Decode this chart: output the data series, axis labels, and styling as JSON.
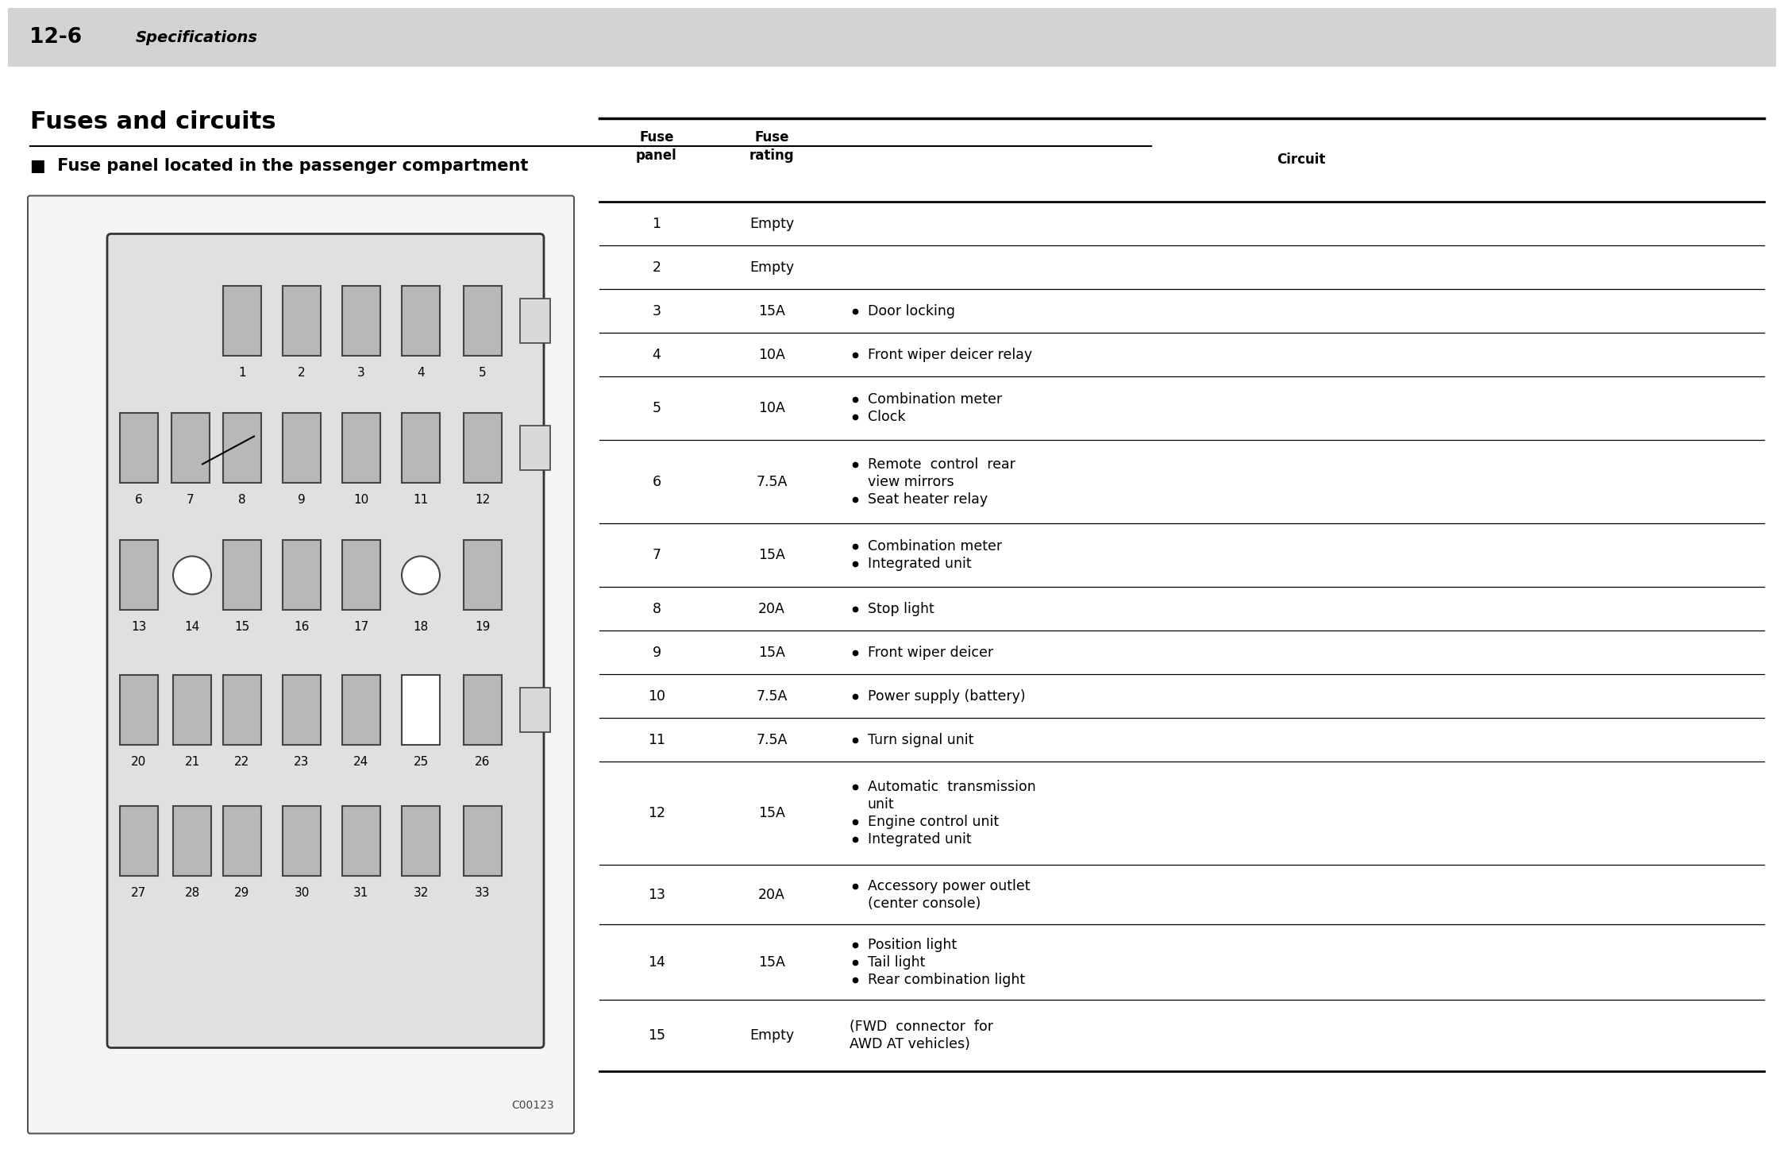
{
  "page_header_number": "12-6",
  "page_header_title": "Specifications",
  "section_title": "Fuses and circuits",
  "subsection_title": "■  Fuse panel located in the passenger compartment",
  "background_color": "#ffffff",
  "header_bg_color": "#d3d3d3",
  "fuse_color": "#c8c8c8",
  "fuse_border_color": "#444444",
  "diagram_code": "C00123",
  "table_data": [
    {
      "fuse": "1",
      "rating": "Empty",
      "circuit": "",
      "has_bullet": false
    },
    {
      "fuse": "2",
      "rating": "Empty",
      "circuit": "",
      "has_bullet": false
    },
    {
      "fuse": "3",
      "rating": "15A",
      "circuit": "Door locking",
      "has_bullet": true,
      "lines": 1
    },
    {
      "fuse": "4",
      "rating": "10A",
      "circuit": "Front wiper deicer relay",
      "has_bullet": true,
      "lines": 1
    },
    {
      "fuse": "5",
      "rating": "10A",
      "circuit": "Combination meter\nClock",
      "has_bullet": true,
      "lines": 2
    },
    {
      "fuse": "6",
      "rating": "7.5A",
      "circuit": "Remote  control  rear\nview mirrors\nSeat heater relay",
      "has_bullet": true,
      "lines": 3,
      "bullet_lines": [
        0,
        2
      ]
    },
    {
      "fuse": "7",
      "rating": "15A",
      "circuit": "Combination meter\nIntegrated unit",
      "has_bullet": true,
      "lines": 2
    },
    {
      "fuse": "8",
      "rating": "20A",
      "circuit": "Stop light",
      "has_bullet": true,
      "lines": 1
    },
    {
      "fuse": "9",
      "rating": "15A",
      "circuit": "Front wiper deicer",
      "has_bullet": true,
      "lines": 1
    },
    {
      "fuse": "10",
      "rating": "7.5A",
      "circuit": "Power supply (battery)",
      "has_bullet": true,
      "lines": 1
    },
    {
      "fuse": "11",
      "rating": "7.5A",
      "circuit": "Turn signal unit",
      "has_bullet": true,
      "lines": 1
    },
    {
      "fuse": "12",
      "rating": "15A",
      "circuit": "Automatic  transmission\nunit\nEngine control unit\nIntegrated unit",
      "has_bullet": true,
      "lines": 4,
      "bullet_lines": [
        0,
        2,
        3
      ]
    },
    {
      "fuse": "13",
      "rating": "20A",
      "circuit": "Accessory power outlet\n(center console)",
      "has_bullet": true,
      "lines": 2,
      "bullet_lines": [
        0
      ]
    },
    {
      "fuse": "14",
      "rating": "15A",
      "circuit": "Position light\nTail light\nRear combination light",
      "has_bullet": true,
      "lines": 3
    },
    {
      "fuse": "15",
      "rating": "Empty",
      "circuit": "(FWD  connector  for\nAWD AT vehicles)",
      "has_bullet": false,
      "lines": 2
    }
  ]
}
